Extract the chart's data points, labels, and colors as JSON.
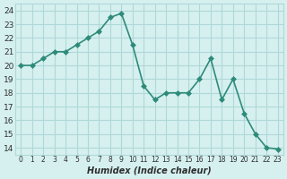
{
  "x": [
    0,
    1,
    2,
    3,
    4,
    5,
    6,
    7,
    8,
    9,
    10,
    11,
    12,
    13,
    14,
    15,
    16,
    17,
    18,
    19,
    20,
    21,
    22,
    23
  ],
  "y": [
    20.0,
    20.0,
    20.5,
    21.0,
    21.0,
    21.5,
    22.0,
    22.5,
    23.5,
    23.8,
    21.5,
    18.5,
    17.5,
    18.0,
    18.0,
    18.0,
    19.0,
    20.5,
    17.5,
    19.0,
    16.5,
    15.0,
    14.0,
    13.9
  ],
  "xlabel": "Humidex (Indice chaleur)",
  "xlim": [
    -0.5,
    23.5
  ],
  "ylim": [
    13.5,
    24.5
  ],
  "yticks": [
    14,
    15,
    16,
    17,
    18,
    19,
    20,
    21,
    22,
    23,
    24
  ],
  "xtick_labels": [
    "0",
    "1",
    "2",
    "3",
    "4",
    "5",
    "6",
    "7",
    "8",
    "9",
    "10",
    "11",
    "12",
    "13",
    "14",
    "15",
    "16",
    "17",
    "18",
    "19",
    "20",
    "21",
    "22",
    "23"
  ],
  "line_color": "#2e8b7a",
  "marker_color": "#2e8b7a",
  "bg_color": "#d6f0f0",
  "grid_color": "#b0d8d8",
  "font_color": "#2e2e2e",
  "axis_bg": "#d6f0f0"
}
